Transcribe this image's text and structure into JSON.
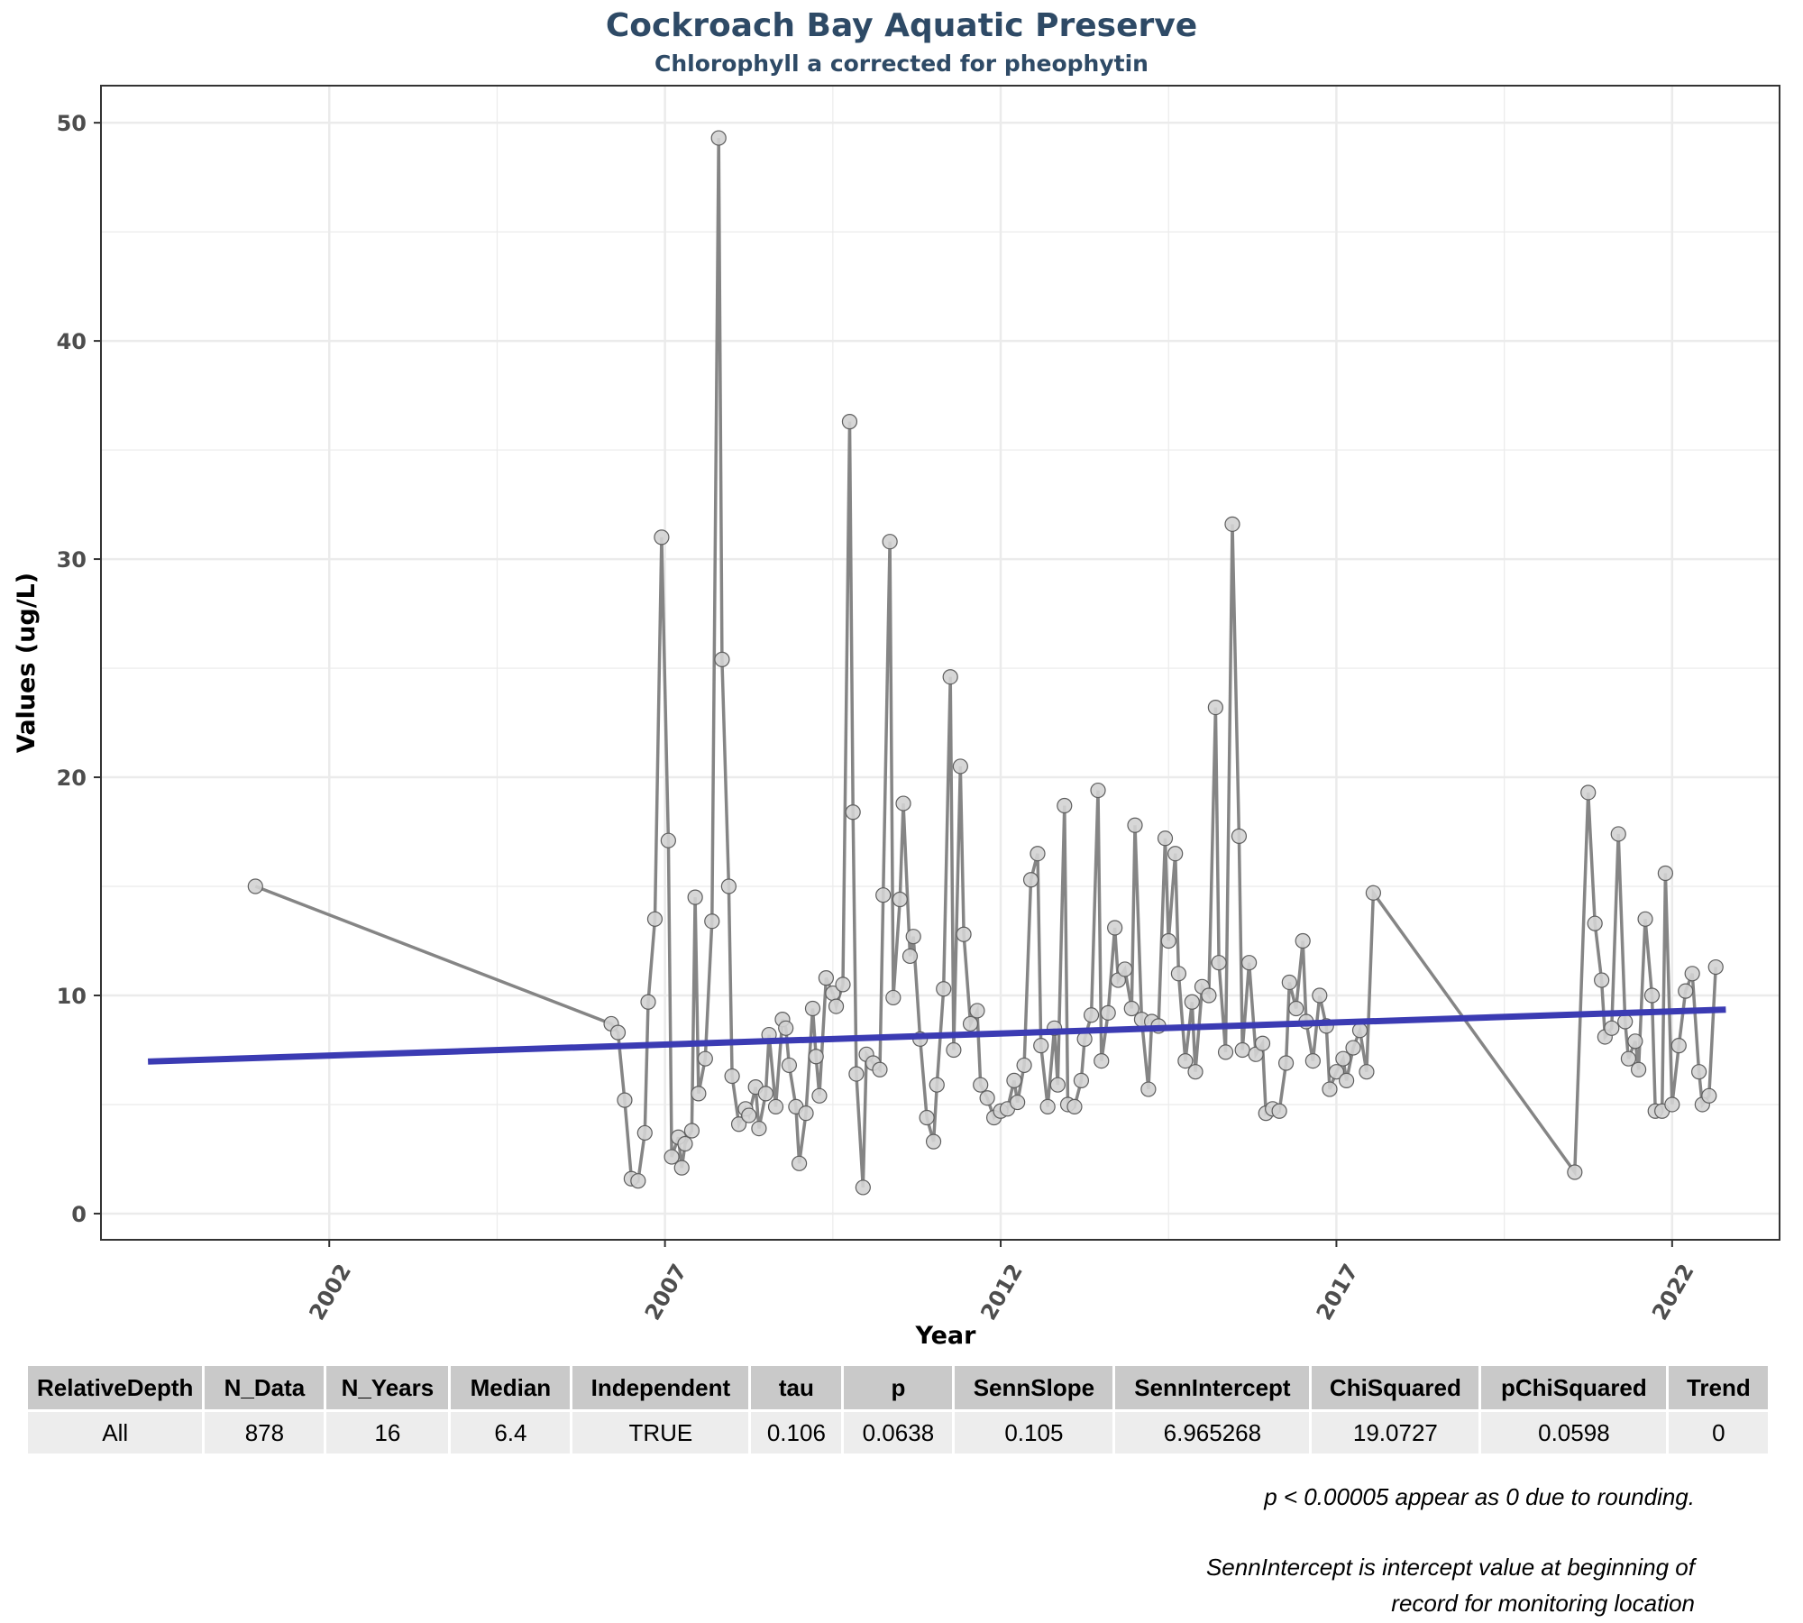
{
  "chart_data": {
    "type": "line",
    "title": "Cockroach Bay Aquatic Preserve",
    "subtitle": "Chlorophyll a corrected for pheophytin",
    "xlabel": "Year",
    "ylabel": "Values (ug/L)",
    "xlim": [
      1998.6,
      2023.6
    ],
    "ylim": [
      -1.2,
      51.7
    ],
    "x_ticks": [
      2002,
      2007,
      2012,
      2017,
      2022
    ],
    "y_ticks": [
      0,
      10,
      20,
      30,
      40,
      50
    ],
    "grid": true,
    "series": [
      {
        "values": [
          [
            2000.9,
            15
          ],
          [
            2006.2,
            8.7
          ],
          [
            2006.3,
            8.3
          ],
          [
            2006.4,
            5.2
          ],
          [
            2006.5,
            1.6
          ],
          [
            2006.6,
            1.5
          ],
          [
            2006.7,
            3.7
          ],
          [
            2006.75,
            9.7
          ],
          [
            2006.85,
            13.5
          ],
          [
            2006.95,
            31
          ],
          [
            2007.05,
            17.1
          ],
          [
            2007.1,
            2.6
          ],
          [
            2007.2,
            3.5
          ],
          [
            2007.25,
            2.1
          ],
          [
            2007.3,
            3.2
          ],
          [
            2007.4,
            3.8
          ],
          [
            2007.45,
            14.5
          ],
          [
            2007.5,
            5.5
          ],
          [
            2007.6,
            7.1
          ],
          [
            2007.7,
            13.4
          ],
          [
            2007.8,
            49.3
          ],
          [
            2007.85,
            25.4
          ],
          [
            2007.95,
            15
          ],
          [
            2008.0,
            6.3
          ],
          [
            2008.1,
            4.1
          ],
          [
            2008.2,
            4.8
          ],
          [
            2008.25,
            4.5
          ],
          [
            2008.35,
            5.8
          ],
          [
            2008.4,
            3.9
          ],
          [
            2008.5,
            5.5
          ],
          [
            2008.55,
            8.2
          ],
          [
            2008.65,
            4.9
          ],
          [
            2008.75,
            8.9
          ],
          [
            2008.8,
            8.5
          ],
          [
            2008.85,
            6.8
          ],
          [
            2008.95,
            4.9
          ],
          [
            2009.0,
            2.3
          ],
          [
            2009.1,
            4.6
          ],
          [
            2009.2,
            9.4
          ],
          [
            2009.25,
            7.2
          ],
          [
            2009.3,
            5.4
          ],
          [
            2009.4,
            10.8
          ],
          [
            2009.5,
            10.1
          ],
          [
            2009.55,
            9.5
          ],
          [
            2009.65,
            10.5
          ],
          [
            2009.75,
            36.3
          ],
          [
            2009.8,
            18.4
          ],
          [
            2009.85,
            6.4
          ],
          [
            2009.95,
            1.2
          ],
          [
            2010.0,
            7.3
          ],
          [
            2010.1,
            6.9
          ],
          [
            2010.2,
            6.6
          ],
          [
            2010.25,
            14.6
          ],
          [
            2010.35,
            30.8
          ],
          [
            2010.4,
            9.9
          ],
          [
            2010.5,
            14.4
          ],
          [
            2010.55,
            18.8
          ],
          [
            2010.65,
            11.8
          ],
          [
            2010.7,
            12.7
          ],
          [
            2010.8,
            8
          ],
          [
            2010.9,
            4.4
          ],
          [
            2011.0,
            3.3
          ],
          [
            2011.05,
            5.9
          ],
          [
            2011.15,
            10.3
          ],
          [
            2011.25,
            24.6
          ],
          [
            2011.3,
            7.5
          ],
          [
            2011.4,
            20.5
          ],
          [
            2011.45,
            12.8
          ],
          [
            2011.55,
            8.7
          ],
          [
            2011.65,
            9.3
          ],
          [
            2011.7,
            5.9
          ],
          [
            2011.8,
            5.3
          ],
          [
            2011.9,
            4.4
          ],
          [
            2012.0,
            4.7
          ],
          [
            2012.1,
            4.8
          ],
          [
            2012.2,
            6.1
          ],
          [
            2012.25,
            5.1
          ],
          [
            2012.35,
            6.8
          ],
          [
            2012.45,
            15.3
          ],
          [
            2012.55,
            16.5
          ],
          [
            2012.6,
            7.7
          ],
          [
            2012.7,
            4.9
          ],
          [
            2012.8,
            8.5
          ],
          [
            2012.85,
            5.9
          ],
          [
            2012.95,
            18.7
          ],
          [
            2013.0,
            5
          ],
          [
            2013.1,
            4.9
          ],
          [
            2013.2,
            6.1
          ],
          [
            2013.25,
            8
          ],
          [
            2013.35,
            9.1
          ],
          [
            2013.45,
            19.4
          ],
          [
            2013.5,
            7
          ],
          [
            2013.6,
            9.2
          ],
          [
            2013.7,
            13.1
          ],
          [
            2013.75,
            10.7
          ],
          [
            2013.85,
            11.2
          ],
          [
            2013.95,
            9.4
          ],
          [
            2014.0,
            17.8
          ],
          [
            2014.1,
            8.9
          ],
          [
            2014.2,
            5.7
          ],
          [
            2014.25,
            8.8
          ],
          [
            2014.35,
            8.6
          ],
          [
            2014.45,
            17.2
          ],
          [
            2014.5,
            12.5
          ],
          [
            2014.6,
            16.5
          ],
          [
            2014.65,
            11
          ],
          [
            2014.75,
            7
          ],
          [
            2014.85,
            9.7
          ],
          [
            2014.9,
            6.5
          ],
          [
            2015.0,
            10.4
          ],
          [
            2015.1,
            10
          ],
          [
            2015.2,
            23.2
          ],
          [
            2015.25,
            11.5
          ],
          [
            2015.35,
            7.4
          ],
          [
            2015.45,
            31.6
          ],
          [
            2015.55,
            17.3
          ],
          [
            2015.6,
            7.5
          ],
          [
            2015.7,
            11.5
          ],
          [
            2015.8,
            7.3
          ],
          [
            2015.9,
            7.8
          ],
          [
            2015.95,
            4.6
          ],
          [
            2016.05,
            4.8
          ],
          [
            2016.15,
            4.7
          ],
          [
            2016.25,
            6.9
          ],
          [
            2016.3,
            10.6
          ],
          [
            2016.4,
            9.4
          ],
          [
            2016.5,
            12.5
          ],
          [
            2016.55,
            8.8
          ],
          [
            2016.65,
            7
          ],
          [
            2016.75,
            10
          ],
          [
            2016.85,
            8.6
          ],
          [
            2016.9,
            5.7
          ],
          [
            2017.0,
            6.5
          ],
          [
            2017.1,
            7.1
          ],
          [
            2017.15,
            6.1
          ],
          [
            2017.25,
            7.6
          ],
          [
            2017.35,
            8.4
          ],
          [
            2017.45,
            6.5
          ],
          [
            2017.55,
            14.7
          ],
          [
            2020.55,
            1.9
          ],
          [
            2020.75,
            19.3
          ],
          [
            2020.85,
            13.3
          ],
          [
            2020.95,
            10.7
          ],
          [
            2021.0,
            8.1
          ],
          [
            2021.1,
            8.5
          ],
          [
            2021.2,
            17.4
          ],
          [
            2021.3,
            8.8
          ],
          [
            2021.35,
            7.1
          ],
          [
            2021.45,
            7.9
          ],
          [
            2021.5,
            6.6
          ],
          [
            2021.6,
            13.5
          ],
          [
            2021.7,
            10
          ],
          [
            2021.75,
            4.7
          ],
          [
            2021.85,
            4.7
          ],
          [
            2021.9,
            15.6
          ],
          [
            2022.0,
            5
          ],
          [
            2022.1,
            7.7
          ],
          [
            2022.2,
            10.2
          ],
          [
            2022.3,
            11
          ],
          [
            2022.4,
            6.5
          ],
          [
            2022.45,
            5
          ],
          [
            2022.55,
            5.4
          ],
          [
            2022.65,
            11.3
          ]
        ]
      }
    ],
    "trend_line": {
      "x": [
        1999.3,
        2022.8
      ],
      "y": [
        6.97,
        9.35
      ],
      "color": "#3b3bb3"
    },
    "colors": {
      "data_line": "#858585",
      "marker_fill": "#d3d3d3",
      "marker_stroke": "#5e5e5e",
      "grid": "#ebebeb",
      "axis_text": "#4d4d4d"
    }
  },
  "stats_table": {
    "headers": [
      "RelativeDepth",
      "N_Data",
      "N_Years",
      "Median",
      "Independent",
      "tau",
      "p",
      "SennSlope",
      "SennIntercept",
      "ChiSquared",
      "pChiSquared",
      "Trend"
    ],
    "row": [
      "All",
      "878",
      "16",
      "6.4",
      "TRUE",
      "0.106",
      "0.0638",
      "0.105",
      "6.965268",
      "19.0727",
      "0.0598",
      "0"
    ]
  },
  "notes": {
    "rounding": "p < 0.00005 appear as 0 due to rounding.",
    "intercept_line1": "SennIntercept is intercept value at beginning of",
    "intercept_line2": "record for monitoring location"
  }
}
